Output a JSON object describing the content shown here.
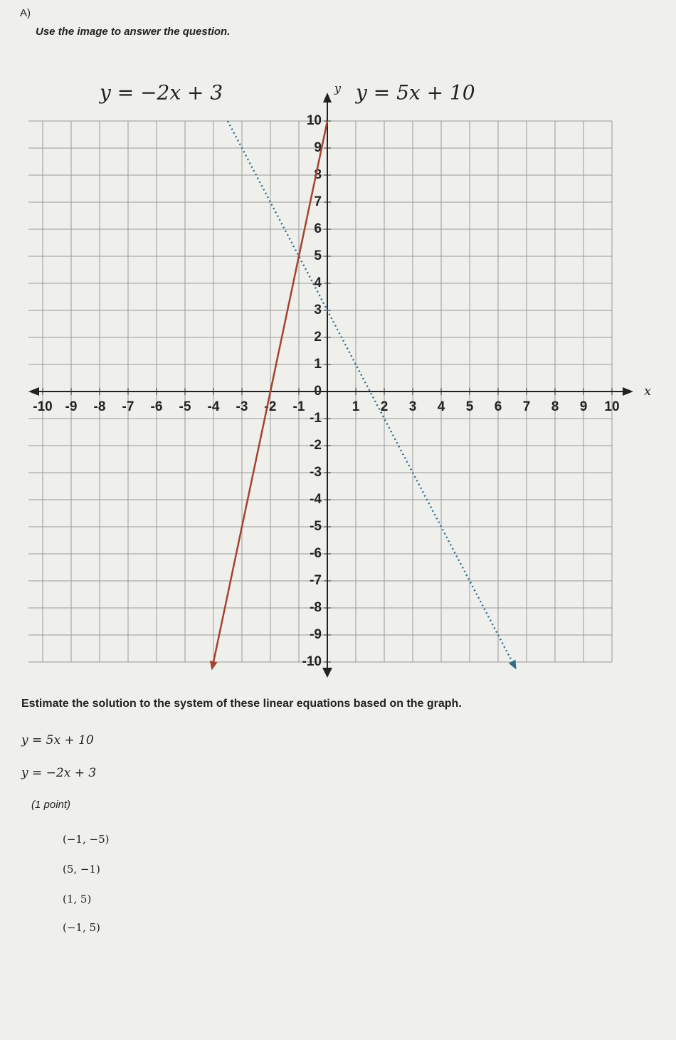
{
  "label": "A)",
  "instruction": "Use the image to answer the question.",
  "chart_data": {
    "type": "line",
    "x_label": "x",
    "y_label": "y",
    "xlim": [
      -10,
      10
    ],
    "ylim": [
      -10,
      10
    ],
    "xticks": [
      -10,
      -9,
      -8,
      -7,
      -6,
      -5,
      -4,
      -3,
      -2,
      -1,
      1,
      2,
      3,
      4,
      5,
      6,
      7,
      8,
      9,
      10
    ],
    "yticks": [
      -10,
      -9,
      -8,
      -7,
      -6,
      -5,
      -4,
      -3,
      -2,
      -1,
      0,
      1,
      2,
      3,
      4,
      5,
      6,
      7,
      8,
      9,
      10
    ],
    "grid": true,
    "series": [
      {
        "name": "y = 5x + 10",
        "color": "#a3442f",
        "style": "solid",
        "x": [
          0,
          -4
        ],
        "values": [
          10,
          -10
        ]
      },
      {
        "name": "y = −2x + 3",
        "color": "#2f6f8c",
        "style": "dotted",
        "x": [
          -3.5,
          6.5
        ],
        "values": [
          10,
          -10
        ]
      }
    ]
  },
  "question": "Estimate the solution to the system of these linear equations based on the graph.",
  "equations": [
    "y = 5x + 10",
    "y = −2x + 3"
  ],
  "points": "(1 point)",
  "options": [
    "(−1, −5)",
    "(5, −1)",
    "(1, 5)",
    "(−1, 5)"
  ]
}
